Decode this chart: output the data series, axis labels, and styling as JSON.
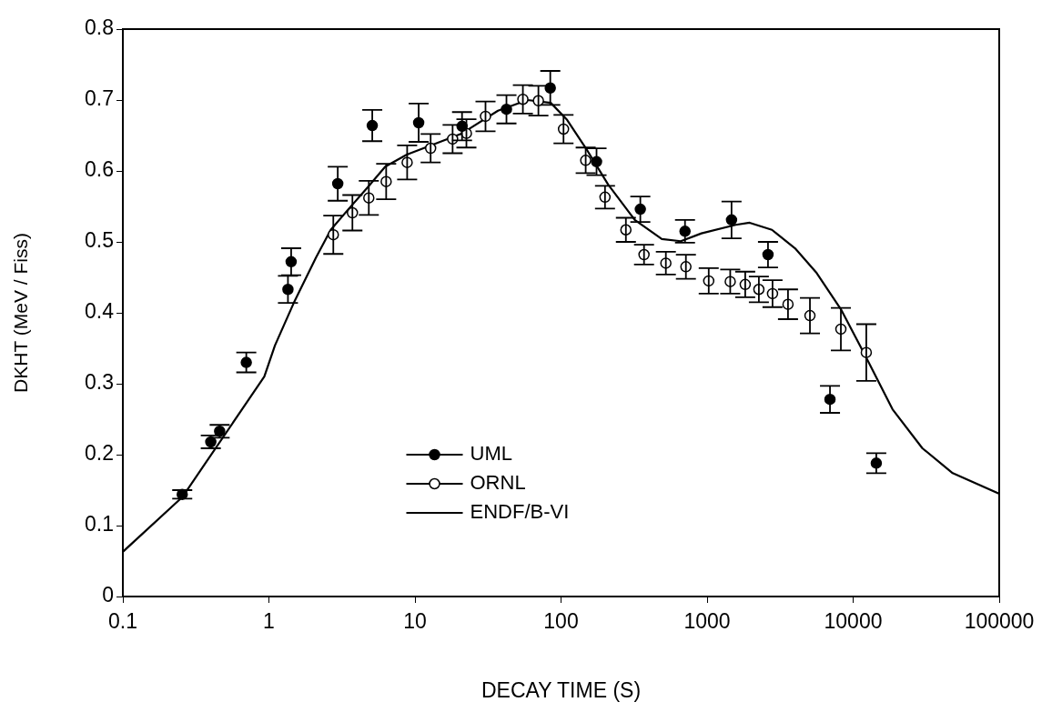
{
  "chart_data": {
    "type": "scatter",
    "xlabel": "DECAY TIME (S)",
    "ylabel": "DKHT (MeV / Fiss)",
    "log": "x",
    "xlim": [
      0.1,
      100000
    ],
    "xticks": [
      0.1,
      1,
      10,
      100,
      1000,
      10000,
      100000
    ],
    "ylim": [
      0,
      0.8
    ],
    "yticks": [
      0,
      0.1,
      0.2,
      0.3,
      0.4,
      0.5,
      0.6,
      0.7,
      0.8
    ],
    "grid": false,
    "legend": "bottom",
    "series": [
      {
        "name": "UML",
        "marker": "circle",
        "color": "#000000",
        "x": [
          0.255,
          0.4,
          0.46,
          0.7,
          1.35,
          1.42,
          2.96,
          5.1,
          10.6,
          21,
          42.3,
          84.4,
          175,
          349,
          706,
          1470,
          2612,
          6940,
          14400
        ],
        "values": [
          0.144,
          0.218,
          0.233,
          0.33,
          0.433,
          0.472,
          0.582,
          0.664,
          0.668,
          0.663,
          0.687,
          0.717,
          0.613,
          0.546,
          0.515,
          0.531,
          0.482,
          0.278,
          0.188
        ],
        "errors": [
          0.006,
          0.009,
          0.009,
          0.014,
          0.019,
          0.019,
          0.024,
          0.022,
          0.027,
          0.02,
          0.02,
          0.024,
          0.019,
          0.018,
          0.016,
          0.026,
          0.018,
          0.019,
          0.014
        ]
      },
      {
        "name": "ORNL",
        "marker": "circle",
        "color": "#ffffff",
        "x": [
          2.76,
          3.73,
          4.83,
          6.35,
          8.84,
          12.8,
          18.1,
          22.5,
          30.4,
          54.8,
          70,
          104,
          147.5,
          200,
          278,
          370,
          522,
          716,
          1026,
          1440,
          1824,
          2262,
          2805,
          3580,
          5060,
          8240,
          12300
        ],
        "values": [
          0.51,
          0.541,
          0.562,
          0.585,
          0.612,
          0.632,
          0.645,
          0.653,
          0.677,
          0.701,
          0.699,
          0.659,
          0.615,
          0.563,
          0.517,
          0.482,
          0.47,
          0.465,
          0.445,
          0.444,
          0.44,
          0.433,
          0.427,
          0.412,
          0.396,
          0.377,
          0.344
        ],
        "errors": [
          0.027,
          0.025,
          0.024,
          0.025,
          0.024,
          0.02,
          0.02,
          0.02,
          0.021,
          0.02,
          0.021,
          0.02,
          0.018,
          0.016,
          0.017,
          0.014,
          0.016,
          0.017,
          0.018,
          0.017,
          0.018,
          0.018,
          0.019,
          0.021,
          0.025,
          0.03,
          0.04
        ]
      },
      {
        "name": "ENDF/B-VI",
        "type": "line",
        "marker": "none",
        "line_style": "solid",
        "color": "#000000",
        "x": [
          0.1,
          0.255,
          0.93,
          1.1,
          1.48,
          2.1,
          2.65,
          3.5,
          4.7,
          6.26,
          8.8,
          12.8,
          21,
          37,
          59,
          85,
          110,
          148,
          210,
          320,
          490,
          660,
          915,
          1570,
          1955,
          2780,
          4000,
          5630,
          8240,
          12000,
          18600,
          29800,
          48000,
          100000
        ],
        "values": [
          0.063,
          0.14,
          0.31,
          0.354,
          0.414,
          0.478,
          0.517,
          0.546,
          0.576,
          0.606,
          0.623,
          0.636,
          0.653,
          0.685,
          0.7,
          0.696,
          0.672,
          0.632,
          0.581,
          0.531,
          0.504,
          0.501,
          0.512,
          0.524,
          0.527,
          0.517,
          0.491,
          0.456,
          0.405,
          0.341,
          0.264,
          0.209,
          0.174,
          0.145
        ]
      }
    ]
  }
}
